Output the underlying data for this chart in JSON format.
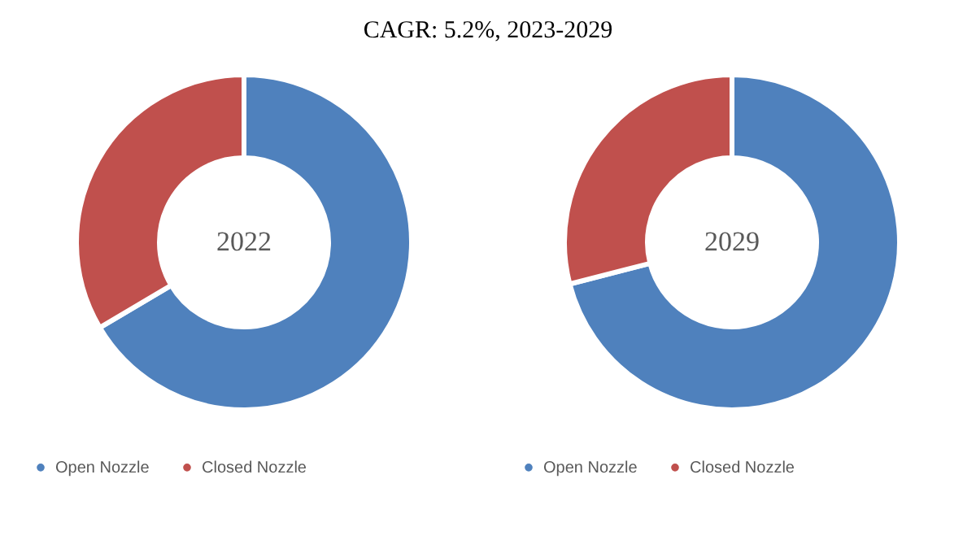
{
  "chart_data": [
    {
      "type": "donut",
      "title": "2022",
      "annotations": [
        "CAGR:  5.2%, 2023-2029"
      ],
      "categories": [
        "Open Nozzle",
        "Closed Nozzle"
      ],
      "values": [
        66.5,
        33.5
      ],
      "colors": [
        "#4f81bd",
        "#c0504d"
      ],
      "legend": "bottom"
    },
    {
      "type": "donut",
      "title": "2029",
      "categories": [
        "Open Nozzle",
        "Closed Nozzle"
      ],
      "values": [
        71,
        29
      ],
      "colors": [
        "#4f81bd",
        "#c0504d"
      ],
      "legend": "bottom"
    }
  ]
}
